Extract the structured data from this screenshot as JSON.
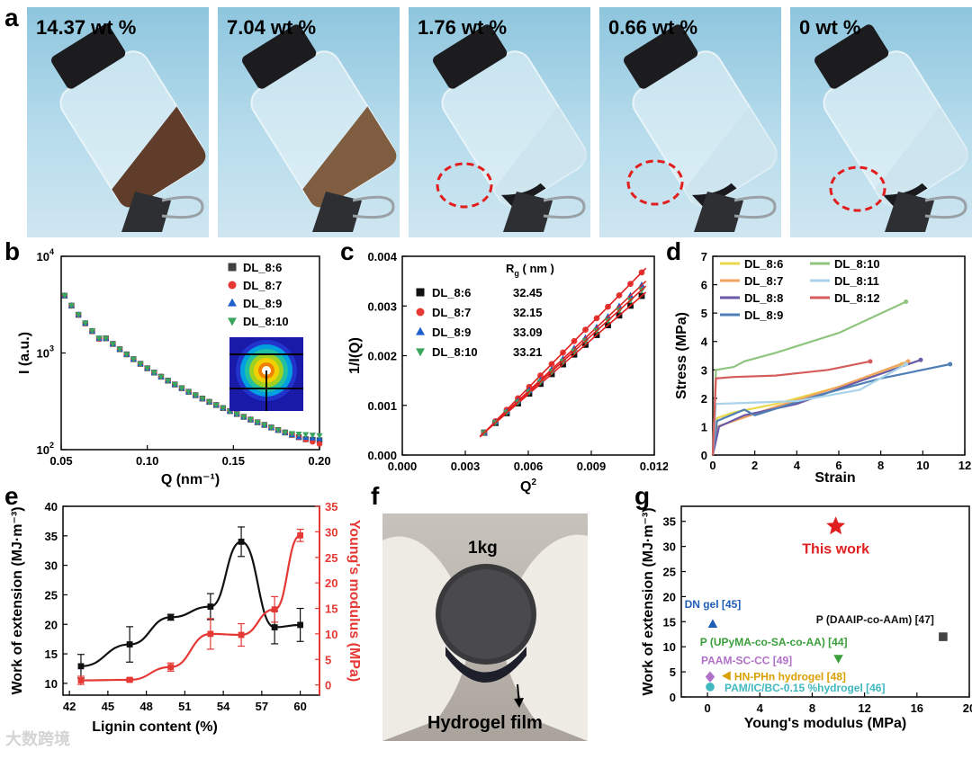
{
  "panel_letters": {
    "a": "a",
    "b": "b",
    "c": "c",
    "d": "d",
    "e": "e",
    "f": "f",
    "g": "g"
  },
  "photos_a": [
    "14.37 wt %",
    "7.04 wt %",
    "1.76 wt %",
    "0.66 wt %",
    "0 wt %"
  ],
  "photo_f": {
    "weight": "1kg",
    "caption": "Hydrogel film"
  },
  "watermark": "大数跨境",
  "colors": {
    "black": "#222222",
    "red": "#e53935",
    "blue": "#1565c0",
    "green": "#43a047"
  },
  "chart_data": [
    {
      "id": "b",
      "type": "scatter",
      "yscale": "log",
      "xlabel": "Q (nm⁻¹)",
      "ylabel": "I (a.u.)",
      "xlim": [
        0.05,
        0.2
      ],
      "ylim": [
        100,
        10000
      ],
      "xticks": [
        "0.05",
        "0.10",
        "0.15",
        "0.20"
      ],
      "yticks": [
        {
          "base": "10",
          "exp": "2"
        },
        {
          "base": "10",
          "exp": "3"
        },
        {
          "base": "10",
          "exp": "4"
        }
      ],
      "series": [
        {
          "name": "DL_8:6",
          "color": "#404040",
          "marker": "square",
          "end": 125
        },
        {
          "name": "DL_8:7",
          "color": "#e53935",
          "marker": "circle",
          "end": 112
        },
        {
          "name": "DL_8:9",
          "color": "#1e5fd0",
          "marker": "triangle",
          "end": 130
        },
        {
          "name": "DL_8:10",
          "color": "#3aa55c",
          "marker": "triangle-down",
          "end": 140
        }
      ]
    },
    {
      "id": "c",
      "type": "scatter",
      "xlabel": "Q²",
      "ylabel": "1/I(Q)",
      "xlim": [
        0,
        0.012
      ],
      "ylim": [
        0,
        0.004
      ],
      "xticks": [
        "0.000",
        "0.003",
        "0.006",
        "0.009",
        "0.012"
      ],
      "yticks": [
        "0.000",
        "0.001",
        "0.002",
        "0.003",
        "0.004"
      ],
      "legend_title": "Rg ( nm )",
      "series": [
        {
          "name": "DL_8:6",
          "rg": "32.45",
          "color": "#111111",
          "marker": "square",
          "slope": 0.367
        },
        {
          "name": "DL_8:7",
          "rg": "32.15",
          "color": "#e53935",
          "marker": "circle",
          "slope": 0.43
        },
        {
          "name": "DL_8:9",
          "rg": "33.09",
          "color": "#1e5fd0",
          "marker": "triangle",
          "slope": 0.396
        },
        {
          "name": "DL_8:10",
          "rg": "33.21",
          "color": "#3aa55c",
          "marker": "triangle-down",
          "slope": 0.383
        }
      ]
    },
    {
      "id": "d",
      "type": "line",
      "xlabel": "Strain",
      "ylabel": "Stress (MPa)",
      "xlim": [
        0,
        12
      ],
      "ylim": [
        0,
        7
      ],
      "xticks": [
        "0",
        "2",
        "4",
        "6",
        "8",
        "10",
        "12"
      ],
      "yticks": [
        "0",
        "1",
        "2",
        "3",
        "4",
        "5",
        "6",
        "7"
      ],
      "series": [
        {
          "name": "DL_8:6",
          "color": "#e8d84a",
          "points": [
            [
              0,
              0
            ],
            [
              0.2,
              1.3
            ],
            [
              1,
              1.5
            ],
            [
              3,
              1.8
            ],
            [
              6,
              2.4
            ],
            [
              9,
              3.2
            ]
          ]
        },
        {
          "name": "DL_8:7",
          "color": "#f2a35e",
          "points": [
            [
              0,
              0
            ],
            [
              0.2,
              1.0
            ],
            [
              1,
              1.2
            ],
            [
              3,
              1.7
            ],
            [
              6,
              2.4
            ],
            [
              9.3,
              3.3
            ]
          ]
        },
        {
          "name": "DL_8:8",
          "color": "#6a5aa8",
          "points": [
            [
              0,
              0
            ],
            [
              0.3,
              1.0
            ],
            [
              1.5,
              1.4
            ],
            [
              4,
              1.8
            ],
            [
              7,
              2.6
            ],
            [
              9.9,
              3.35
            ]
          ]
        },
        {
          "name": "DL_8:9",
          "color": "#4e7fb5",
          "points": [
            [
              0,
              0
            ],
            [
              0.2,
              1.2
            ],
            [
              1.5,
              1.6
            ],
            [
              2,
              1.4
            ],
            [
              5,
              2.1
            ],
            [
              8,
              2.7
            ],
            [
              11.3,
              3.2
            ]
          ]
        },
        {
          "name": "DL_8:10",
          "color": "#8fc57e",
          "points": [
            [
              0,
              0
            ],
            [
              0.15,
              3.0
            ],
            [
              1,
              3.1
            ],
            [
              1.5,
              3.3
            ],
            [
              3,
              3.6
            ],
            [
              6,
              4.3
            ],
            [
              9.2,
              5.4
            ]
          ]
        },
        {
          "name": "DL_8:11",
          "color": "#a9d3e8",
          "points": [
            [
              0,
              0
            ],
            [
              0.15,
              1.8
            ],
            [
              2,
              1.85
            ],
            [
              4,
              1.9
            ],
            [
              7,
              2.3
            ],
            [
              9.2,
              3.2
            ]
          ]
        },
        {
          "name": "DL_8:12",
          "color": "#d65b5b",
          "points": [
            [
              0,
              0
            ],
            [
              0.15,
              2.7
            ],
            [
              1,
              2.75
            ],
            [
              3,
              2.8
            ],
            [
              5.5,
              3.0
            ],
            [
              7.5,
              3.3
            ]
          ]
        }
      ]
    },
    {
      "id": "e",
      "type": "line",
      "xlabel": "Lignin content (%)",
      "ylabel": "Work of extension (MJ·m⁻³)",
      "ylabel_right": "Young's modulus (MPa)",
      "xlim": [
        41.5,
        61.5
      ],
      "ylim": [
        8,
        40
      ],
      "ylim_right": [
        -2,
        35
      ],
      "xticks": [
        "42",
        "45",
        "48",
        "51",
        "54",
        "57",
        "60"
      ],
      "yticks": [
        "10",
        "15",
        "20",
        "25",
        "30",
        "35",
        "40"
      ],
      "yticks_right": [
        "0",
        "5",
        "10",
        "15",
        "20",
        "25",
        "30",
        "35"
      ],
      "x": [
        42.9,
        46.7,
        49.9,
        53.0,
        55.4,
        58.0,
        60.0
      ],
      "series": [
        {
          "name": "Work of extension",
          "axis": "left",
          "color": "#111111",
          "values": [
            12.9,
            16.6,
            21.2,
            23.0,
            34.0,
            19.5,
            19.9
          ],
          "err": [
            2.0,
            3.0,
            0.5,
            2.2,
            2.5,
            2.8,
            2.8
          ]
        },
        {
          "name": "Young's modulus",
          "axis": "right",
          "color": "#e53935",
          "values": [
            0.9,
            1.0,
            3.5,
            10.0,
            9.8,
            14.8,
            29.3
          ],
          "err": [
            0.8,
            0.3,
            0.8,
            3.0,
            2.2,
            2.5,
            1.2
          ]
        }
      ]
    },
    {
      "id": "g",
      "type": "scatter",
      "xlabel": "Young's modulus (MPa)",
      "ylabel": "Work of extension (MJ·m⁻³)",
      "xlim": [
        -2,
        20
      ],
      "ylim": [
        0,
        38
      ],
      "xticks": [
        "0",
        "4",
        "8",
        "12",
        "16",
        "20"
      ],
      "yticks": [
        "0",
        "5",
        "10",
        "15",
        "20",
        "25",
        "30",
        "35"
      ],
      "points": [
        {
          "label": "This work",
          "x": 9.8,
          "y": 34.0,
          "color": "#e02020",
          "marker": "star"
        },
        {
          "label": "DN gel [45]",
          "x": 0.4,
          "y": 14.5,
          "color": "#1f5fb8",
          "marker": "triangle"
        },
        {
          "label": "P (DAAIP-co-AAm) [47]",
          "x": 18.0,
          "y": 12.0,
          "color": "#444444",
          "marker": "square"
        },
        {
          "label": "P (UPyMA-co-SA-co-AA) [44]",
          "x": 10.0,
          "y": 7.7,
          "color": "#3a9e3a",
          "marker": "triangle-down"
        },
        {
          "label": "PAAM-SC-CC [49]",
          "x": 0.2,
          "y": 4.0,
          "color": "#b070c8",
          "marker": "diamond"
        },
        {
          "label": "HN-PHn hydrogel [48]",
          "x": 1.5,
          "y": 4.2,
          "color": "#d8a000",
          "marker": "triangle-left"
        },
        {
          "label": "PAM/IC/BC-0.15 %hydrogel [46]",
          "x": 0.2,
          "y": 2.0,
          "color": "#40b8c0",
          "marker": "circle"
        }
      ]
    }
  ]
}
